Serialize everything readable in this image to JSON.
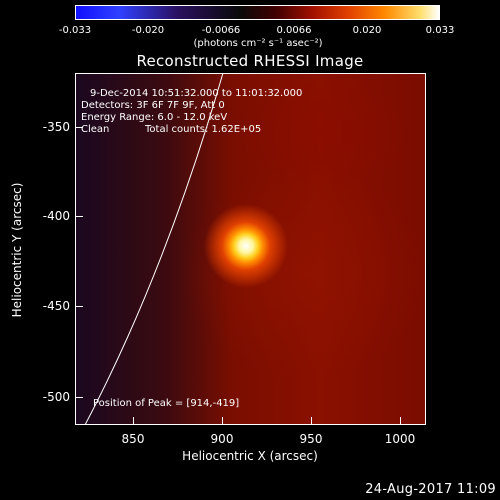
{
  "colorbar": {
    "ticks": [
      "-0.033",
      "-0.020",
      "-0.0066",
      "0.0066",
      "0.020",
      "0.033"
    ],
    "units": "(photons cm⁻² s⁻¹ asec⁻²)"
  },
  "title": "Reconstructed RHESSI Image",
  "info": {
    "time": "9-Dec-2014 10:51:32.000 to 11:01:32.000",
    "detectors": "Detectors: 3F 6F 7F 9F, Att 0",
    "energy": "Energy Range: 6.0 - 12.0 keV",
    "method": "Clean",
    "counts": "Total counts: 1.62E+05",
    "peak": "Position of Peak = [914,-419]"
  },
  "axes": {
    "xlabel": "Heliocentric X (arcsec)",
    "ylabel": "Heliocentric Y (arcsec)",
    "xticks": [
      "850",
      "900",
      "950",
      "1000"
    ],
    "yticks": [
      "-350",
      "-400",
      "-450",
      "-500"
    ]
  },
  "timestamp": "24-Aug-2017 11:09"
}
